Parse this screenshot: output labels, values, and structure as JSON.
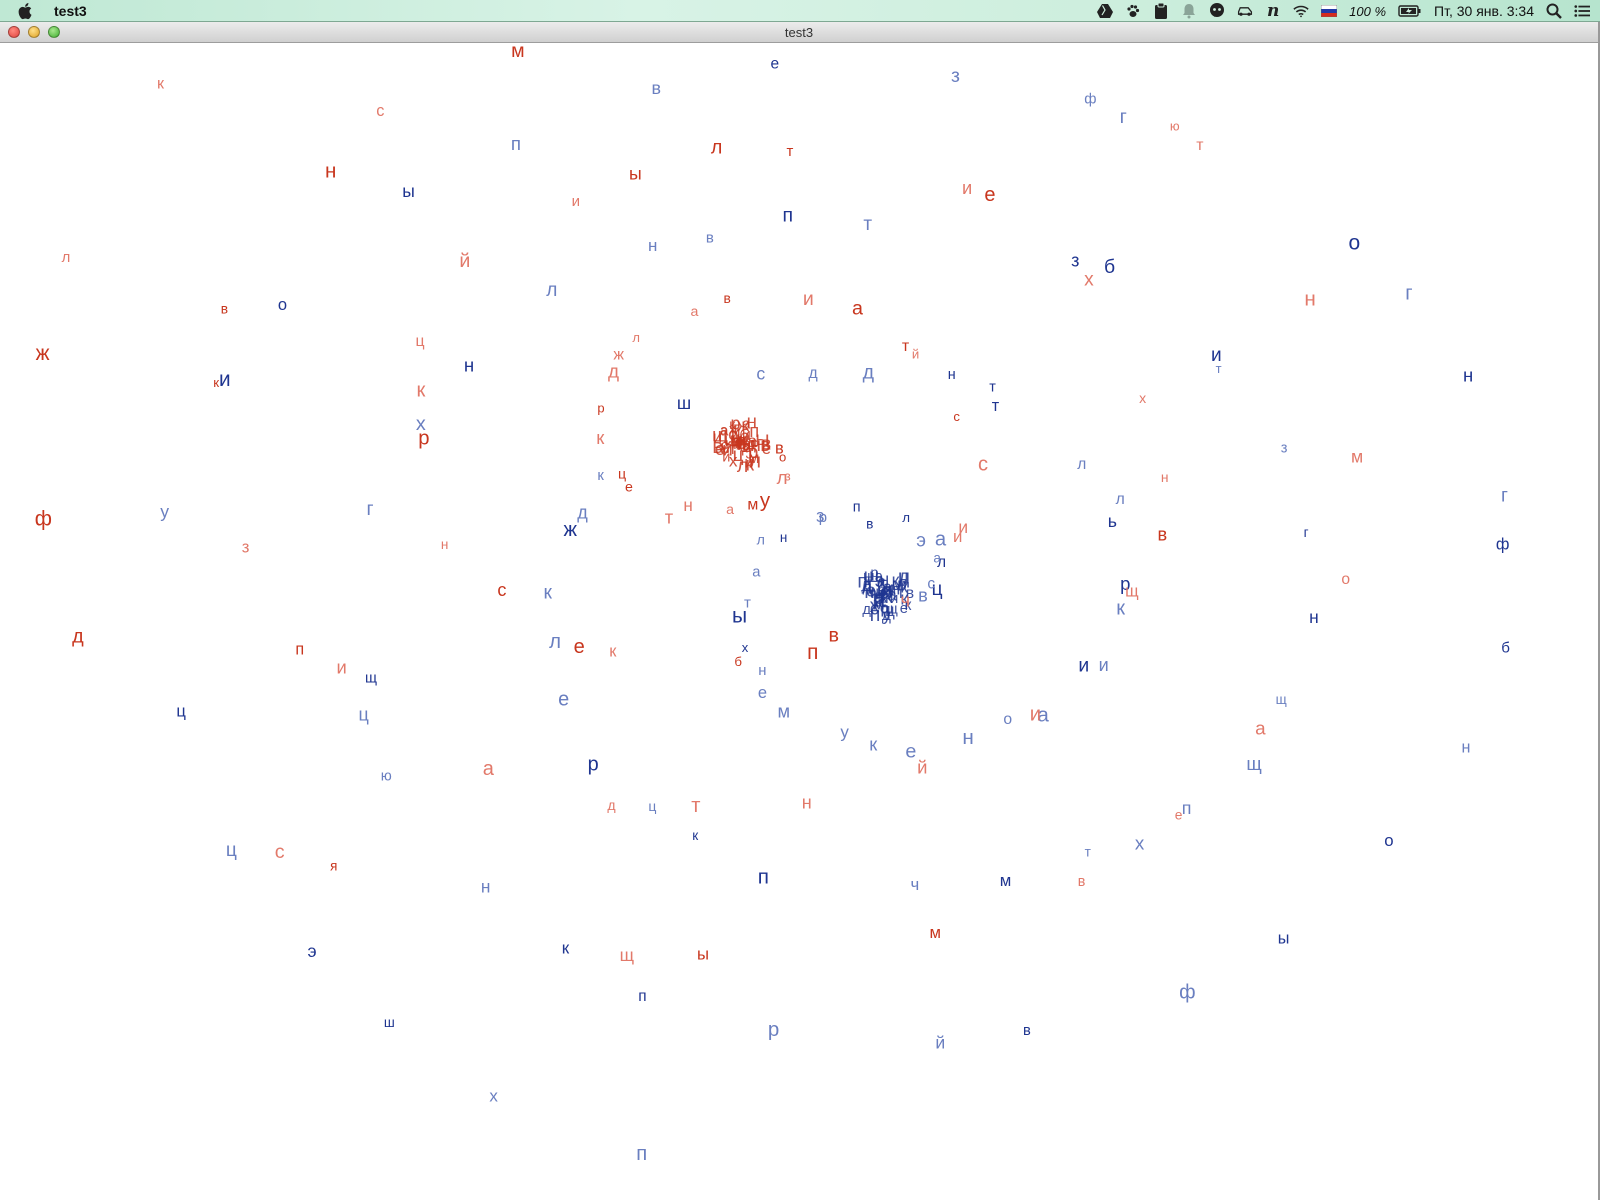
{
  "menubar": {
    "app_name": "test3",
    "battery": "100 %",
    "datetime": "Пт, 30 янв.  3:34",
    "tray_icons": [
      "drive-icon",
      "paw-icon",
      "clipboard-icon",
      "bell-icon",
      "chat-icon",
      "car-icon",
      "n-icon",
      "wifi-icon",
      "flag-ru-icon",
      "battery-icon",
      "search-icon",
      "list-icon"
    ]
  },
  "window": {
    "title": "test3"
  },
  "colors": {
    "red": "#c8361e",
    "red_light": "#e2796a",
    "blue": "#1f3590",
    "blue_light": "#6a7fc0"
  },
  "letters": {
    "red": "возлумантецкрджлавиатйссиичвпбкеснркцйиылтиеххнвщийнтдаипзквнсмцдуютнмоаевмыщясдфжлкрнь",
    "blue": "вцслааэлвпрзнлатыхнемукеноаиикрьллттнддсшкджклерцкпчмтхпщщнгзтибзтпвнлнхгщцюнкпрйвфыонбфгнгогфзевпыоиуццэшхп"
  }
}
